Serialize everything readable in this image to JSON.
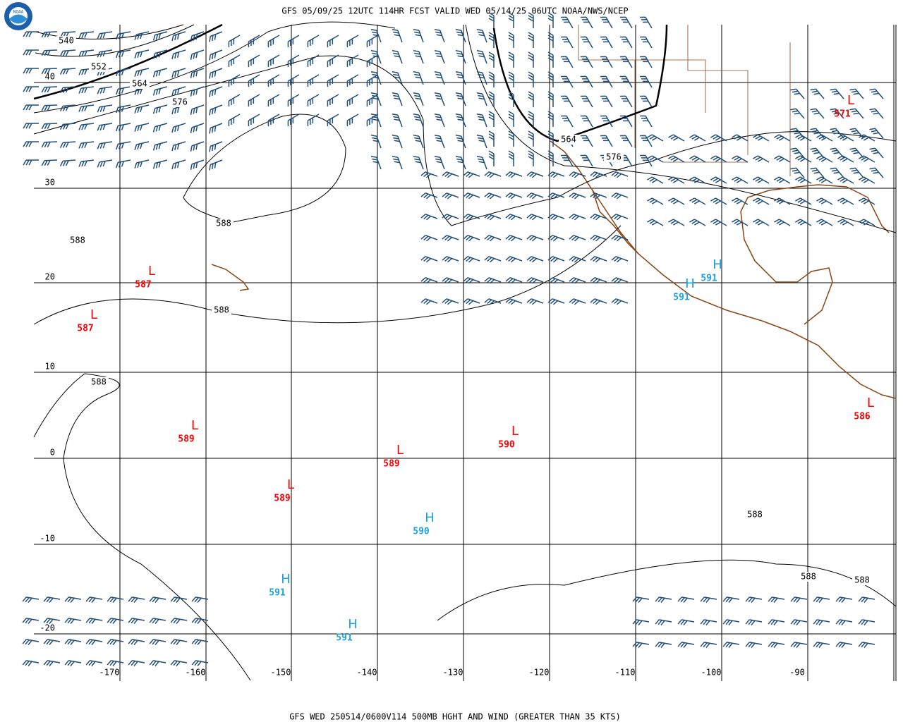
{
  "header": {
    "title": "GFS 05/09/25 12UTC 114HR FCST VALID WED 05/14/25 06UTC NOAA/NWS/NCEP",
    "logo": "NOAA"
  },
  "footer": {
    "caption": "GFS WED 250514/0600V114 500MB HGHT AND WIND (GREATER THAN 35 KTS)"
  },
  "latitude_labels": [
    "40",
    "30",
    "20",
    "10",
    "0",
    "-10",
    "-20"
  ],
  "longitude_labels": [
    "-170",
    "-160",
    "-150",
    "-140",
    "-130",
    "-120",
    "-110",
    "-100",
    "-90"
  ],
  "contour_labels": [
    "540",
    "552",
    "564",
    "576",
    "588",
    "588",
    "588",
    "588",
    "564",
    "576",
    "588",
    "588",
    "588"
  ],
  "centers": [
    {
      "symbol": "L",
      "value": "587"
    },
    {
      "symbol": "L",
      "value": "587"
    },
    {
      "symbol": "L",
      "value": "589"
    },
    {
      "symbol": "L",
      "value": "589"
    },
    {
      "symbol": "L",
      "value": "589"
    },
    {
      "symbol": "L",
      "value": "590"
    },
    {
      "symbol": "L",
      "value": "571"
    },
    {
      "symbol": "L",
      "value": "586"
    },
    {
      "symbol": "H",
      "value": "591"
    },
    {
      "symbol": "H",
      "value": "591"
    },
    {
      "symbol": "H",
      "value": "590"
    },
    {
      "symbol": "H",
      "value": "591"
    },
    {
      "symbol": "H",
      "value": "591"
    }
  ]
}
